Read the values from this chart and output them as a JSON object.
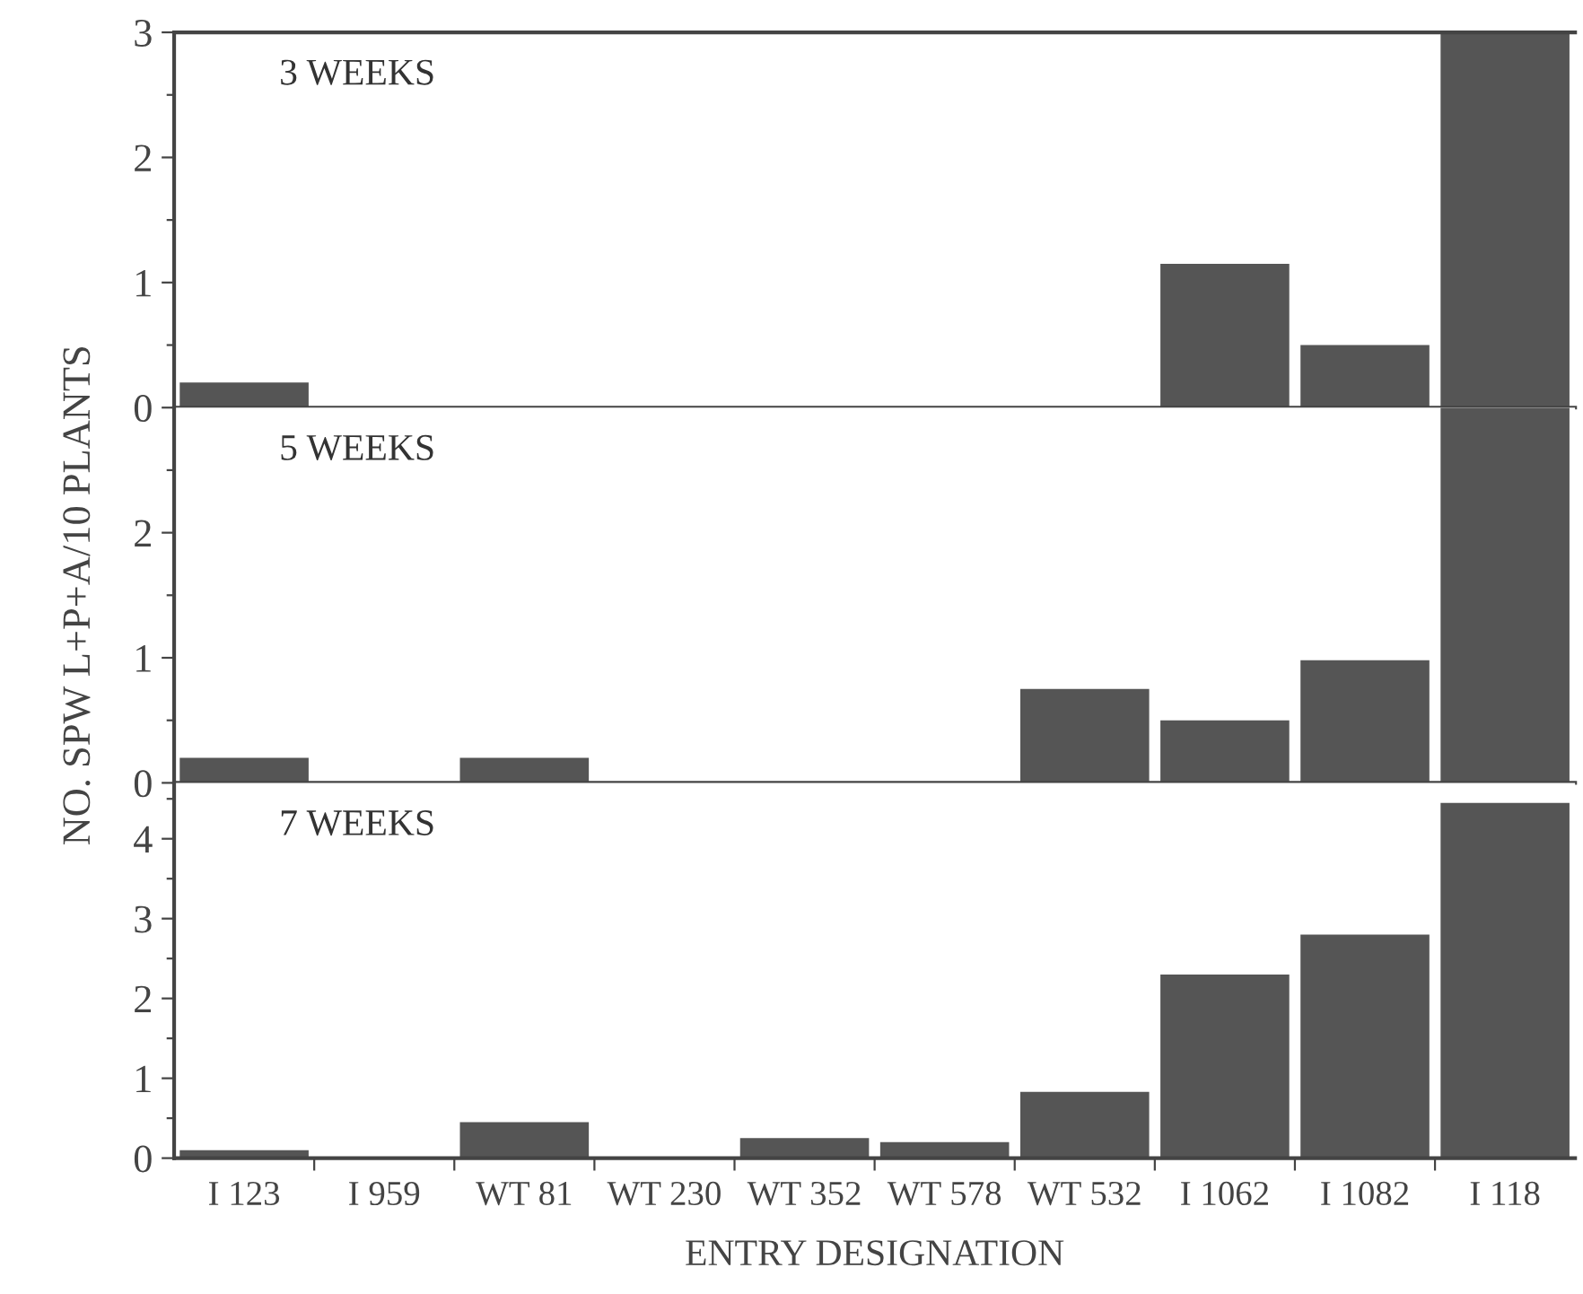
{
  "chart_data": [
    {
      "type": "bar",
      "categories": [
        null,
        null,
        null,
        null,
        null,
        null,
        null,
        null,
        null,
        null
      ],
      "values": [
        0.2,
        0,
        0,
        0,
        0,
        0,
        0,
        1.15,
        0.5,
        3
      ],
      "color": "#555555",
      "ylim": [
        0,
        3
      ],
      "yticks": [
        0,
        {
          "value": 0.5,
          "label": null
        },
        1,
        {
          "value": 1.5,
          "label": null
        },
        2,
        {
          "value": 2.5,
          "label": null
        },
        3
      ],
      "annotations": [
        "3 WEEKS"
      ],
      "tick_labels": "y",
      "grid": false,
      "legend": false
    },
    {
      "type": "bar",
      "categories": [
        null,
        null,
        null,
        null,
        null,
        null,
        null,
        null,
        null,
        null
      ],
      "values": [
        0.2,
        0,
        0.2,
        0,
        0,
        0,
        0.75,
        0.5,
        0.98,
        3
      ],
      "color": "#555555",
      "ylim": [
        0,
        3
      ],
      "yticks": [
        0,
        {
          "value": 0.5,
          "label": null
        },
        1,
        {
          "value": 1.5,
          "label": null
        },
        2,
        {
          "value": 2.5,
          "label": null
        }
      ],
      "ylabel": "NO. SPW L+P+A/10 PLANTS",
      "annotations": [
        "5 WEEKS"
      ],
      "tick_labels": "y",
      "grid": false,
      "legend": false
    },
    {
      "type": "bar",
      "categories": [
        "I 123",
        "I 959",
        "WT 81",
        "WT 230",
        "WT 352",
        "WT 578",
        "WT 532",
        "I 1062",
        "I 1082",
        "I 118"
      ],
      "values": [
        0.1,
        0,
        0.45,
        0,
        0.25,
        0.2,
        0.83,
        2.3,
        2.8,
        4.45
      ],
      "color": "#555555",
      "ylim": [
        0,
        4.7
      ],
      "yticks": [
        0,
        {
          "value": 0.5,
          "label": null
        },
        1,
        {
          "value": 1.5,
          "label": null
        },
        2,
        {
          "value": 2.5,
          "label": null
        },
        3,
        {
          "value": 3.5,
          "label": null
        },
        4,
        {
          "value": 4.5,
          "label": null
        }
      ],
      "xlabel": "ENTRY DESIGNATION",
      "annotations": [
        "7 WEEKS"
      ],
      "grid": false,
      "legend": false
    }
  ]
}
